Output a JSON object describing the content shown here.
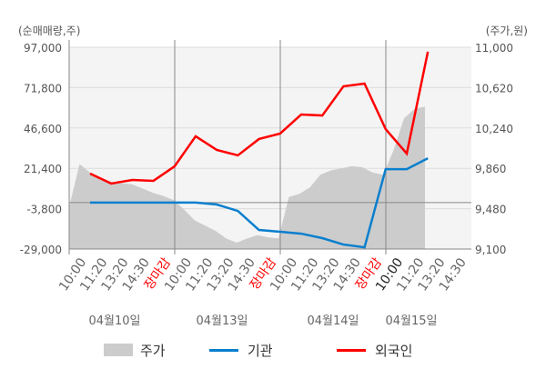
{
  "chart_data": {
    "type": "line",
    "left_axis_title": "(순매매량,주)",
    "right_axis_title": "(주가,원)",
    "left_ticks": [
      "97,000",
      "71,800",
      "46,600",
      "21,400",
      "-3,800",
      "-29,000"
    ],
    "right_ticks": [
      "11,000",
      "10,620",
      "10,240",
      "9,860",
      "9,480",
      "9,100"
    ],
    "ylim_left": [
      -29000,
      97000
    ],
    "ylim_right": [
      9100,
      11000
    ],
    "grid": true,
    "legend_position": "bottom",
    "days": [
      {
        "date": "04월10일",
        "times": [
          "10:00",
          "11:20",
          "13:20",
          "14:30",
          "장마감"
        ]
      },
      {
        "date": "04월13일",
        "times": [
          "10:00",
          "11:20",
          "13:20",
          "14:30",
          "장마감"
        ]
      },
      {
        "date": "04월14일",
        "times": [
          "10:00",
          "11:20",
          "13:20",
          "14:30",
          "장마감"
        ]
      },
      {
        "date": "04월15일",
        "times": [
          "10:00",
          "11:20",
          "13:20",
          "14:30"
        ]
      }
    ],
    "series": [
      {
        "name": "외국인",
        "color": "#ff0000",
        "values": [
          18100,
          11900,
          14100,
          13600,
          22600,
          41400,
          32900,
          29500,
          39700,
          43100,
          55000,
          54400,
          72600,
          74300,
          45900,
          30600,
          94200
        ]
      },
      {
        "name": "기관",
        "color": "#0a7fce",
        "values": [
          0,
          0,
          0,
          0,
          0,
          0,
          -1200,
          -5200,
          -17100,
          -18200,
          -19400,
          -22200,
          -26200,
          -27900,
          20900,
          20900,
          27700
        ]
      },
      {
        "name": "주가",
        "color": "#cccccc",
        "type": "area",
        "values": [
          9500,
          9900,
          9820,
          9750,
          9710,
          9720,
          9710,
          9670,
          9630,
          9600,
          9560,
          9470,
          9370,
          9320,
          9270,
          9200,
          9160,
          9200,
          9230,
          9210,
          9200,
          9590,
          9620,
          9680,
          9800,
          9840,
          9860,
          9880,
          9870,
          9820,
          9800,
          10030,
          10330,
          10420,
          10440
        ]
      }
    ]
  },
  "legend": [
    {
      "label": "주가",
      "color": "#cccccc"
    },
    {
      "label": "기관",
      "color": "#0a7fce"
    },
    {
      "label": "외국인",
      "color": "#ff0000"
    }
  ]
}
